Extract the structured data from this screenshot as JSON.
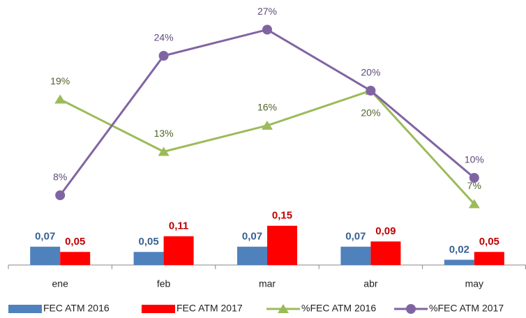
{
  "chart_data": {
    "type": "bar-line",
    "categories": [
      "ene",
      "feb",
      "mar",
      "abr",
      "may"
    ],
    "ylim": [
      0,
      1
    ],
    "y2lim": [
      0,
      30
    ],
    "series": [
      {
        "name": "FEC ATM 2016",
        "type": "bar",
        "color": "#4F81BD",
        "label_color": "#376092",
        "values": [
          0.07,
          0.05,
          0.07,
          0.07,
          0.02
        ],
        "value_labels": [
          "0,07",
          "0,05",
          "0,07",
          "0,07",
          "0,02"
        ]
      },
      {
        "name": "FEC ATM 2017",
        "type": "bar",
        "color": "#FF0000",
        "label_color": "#C00000",
        "values": [
          0.05,
          0.11,
          0.15,
          0.09,
          0.05
        ],
        "value_labels": [
          "0,05",
          "0,11",
          "0,15",
          "0,09",
          "0,05"
        ]
      },
      {
        "name": "%FEC ATM 2016",
        "type": "line",
        "axis": "y2",
        "marker": "triangle",
        "color": "#9BBB59",
        "label_color": "#4F6228",
        "values": [
          19,
          13,
          16,
          20,
          7
        ],
        "value_labels": [
          "19%",
          "13%",
          "16%",
          "20%",
          "7%"
        ]
      },
      {
        "name": "%FEC ATM 2017",
        "type": "line",
        "axis": "y2",
        "marker": "circle",
        "color": "#8064A2",
        "label_color": "#5F497A",
        "values": [
          8,
          24,
          27,
          20,
          10
        ],
        "value_labels": [
          "8%",
          "24%",
          "27%",
          "20%",
          "10%"
        ]
      }
    ]
  }
}
